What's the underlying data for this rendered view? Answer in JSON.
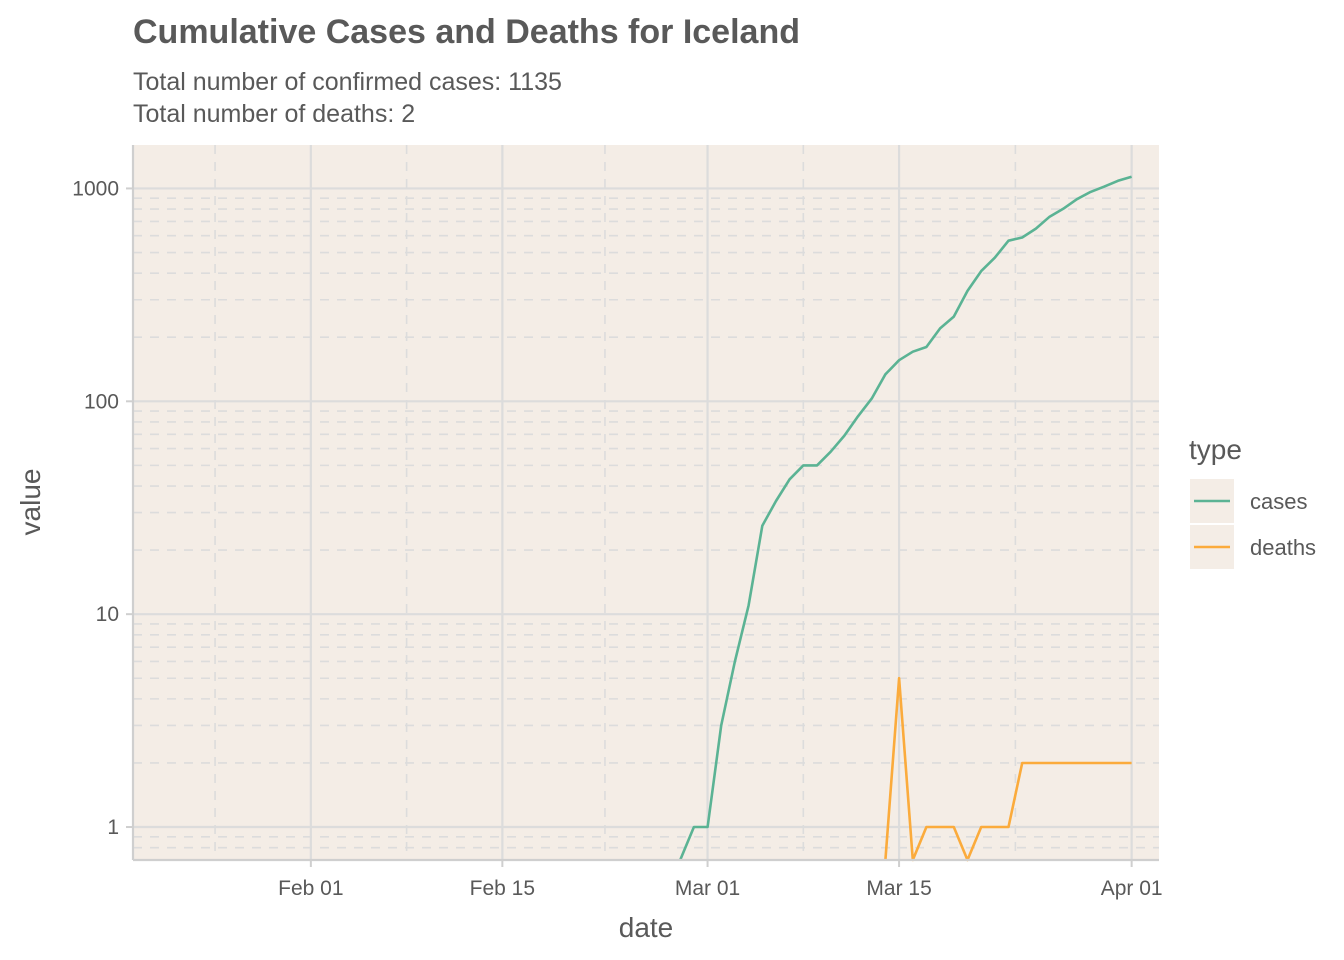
{
  "chart_data": {
    "type": "line",
    "title": "Cumulative Cases and Deaths for Iceland",
    "subtitle_lines": [
      "Total number of confirmed cases: 1135",
      "Total number of deaths: 2"
    ],
    "xlabel": "date",
    "ylabel": "value",
    "y_scale": "log10",
    "ylim": [
      0.7,
      1600
    ],
    "xlim": [
      "2020-01-19",
      "2020-04-03"
    ],
    "grid": true,
    "legend_position": "right",
    "legend_title": "type",
    "background_color": "#f4ede6",
    "x_ticks": [
      {
        "date": "2020-02-01",
        "label": "Feb 01"
      },
      {
        "date": "2020-02-15",
        "label": "Feb 15"
      },
      {
        "date": "2020-03-01",
        "label": "Mar 01"
      },
      {
        "date": "2020-03-15",
        "label": "Mar 15"
      },
      {
        "date": "2020-04-01",
        "label": "Apr 01"
      }
    ],
    "y_ticks": [
      {
        "value": 1,
        "label": "1"
      },
      {
        "value": 10,
        "label": "10"
      },
      {
        "value": 100,
        "label": "100"
      },
      {
        "value": 1000,
        "label": "1000"
      }
    ],
    "series": [
      {
        "name": "cases",
        "color": "#5bb394",
        "points": [
          [
            "2020-02-28",
            0.7
          ],
          [
            "2020-02-29",
            1
          ],
          [
            "2020-03-01",
            1
          ],
          [
            "2020-03-02",
            3
          ],
          [
            "2020-03-03",
            6
          ],
          [
            "2020-03-04",
            11
          ],
          [
            "2020-03-05",
            26
          ],
          [
            "2020-03-06",
            34
          ],
          [
            "2020-03-07",
            43
          ],
          [
            "2020-03-08",
            50
          ],
          [
            "2020-03-09",
            50
          ],
          [
            "2020-03-10",
            58
          ],
          [
            "2020-03-11",
            69
          ],
          [
            "2020-03-12",
            85
          ],
          [
            "2020-03-13",
            103
          ],
          [
            "2020-03-14",
            134
          ],
          [
            "2020-03-15",
            156
          ],
          [
            "2020-03-16",
            171
          ],
          [
            "2020-03-17",
            180
          ],
          [
            "2020-03-18",
            220
          ],
          [
            "2020-03-19",
            250
          ],
          [
            "2020-03-20",
            330
          ],
          [
            "2020-03-21",
            409
          ],
          [
            "2020-03-22",
            473
          ],
          [
            "2020-03-23",
            568
          ],
          [
            "2020-03-24",
            588
          ],
          [
            "2020-03-25",
            648
          ],
          [
            "2020-03-26",
            737
          ],
          [
            "2020-03-27",
            802
          ],
          [
            "2020-03-28",
            890
          ],
          [
            "2020-03-29",
            963
          ],
          [
            "2020-03-30",
            1020
          ],
          [
            "2020-03-31",
            1086
          ],
          [
            "2020-04-01",
            1135
          ]
        ]
      },
      {
        "name": "deaths",
        "color": "#fbab3c",
        "points": [
          [
            "2020-03-14",
            0.7
          ],
          [
            "2020-03-15",
            5
          ],
          [
            "2020-03-16",
            0.7
          ],
          [
            "2020-03-17",
            1
          ],
          [
            "2020-03-18",
            1
          ],
          [
            "2020-03-19",
            1
          ],
          [
            "2020-03-20",
            0.7
          ],
          [
            "2020-03-21",
            1
          ],
          [
            "2020-03-22",
            1
          ],
          [
            "2020-03-23",
            1
          ],
          [
            "2020-03-24",
            2
          ],
          [
            "2020-03-25",
            2
          ],
          [
            "2020-03-26",
            2
          ],
          [
            "2020-03-27",
            2
          ],
          [
            "2020-03-28",
            2
          ],
          [
            "2020-03-29",
            2
          ],
          [
            "2020-03-30",
            2
          ],
          [
            "2020-03-31",
            2
          ],
          [
            "2020-04-01",
            2
          ]
        ]
      }
    ]
  }
}
